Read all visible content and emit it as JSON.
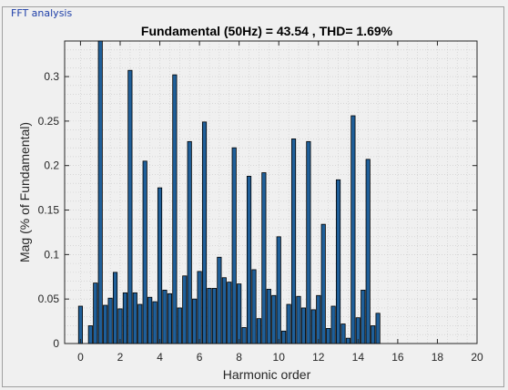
{
  "panel": {
    "title": "FFT analysis"
  },
  "chart_data": {
    "type": "bar",
    "title": "Fundamental (50Hz) = 43.54 , THD= 1.69%",
    "xlabel": "Harmonic order",
    "ylabel": "Mag (% of Fundamental)",
    "xlim": [
      -0.8,
      20
    ],
    "ylim": [
      0,
      0.34
    ],
    "xticks": [
      0,
      2,
      4,
      6,
      8,
      10,
      12,
      14,
      16,
      18,
      20
    ],
    "yticks": [
      0,
      0.05,
      0.1,
      0.15,
      0.2,
      0.25,
      0.3
    ],
    "ytick_labels": [
      "0",
      "0.05",
      "0.1",
      "0.15",
      "0.2",
      "0.25",
      "0.3"
    ],
    "grid": true,
    "bar_color": "#1f5f99",
    "x": [
      0,
      0.25,
      0.5,
      0.75,
      1,
      1.25,
      1.5,
      1.75,
      2,
      2.25,
      2.5,
      2.75,
      3,
      3.25,
      3.5,
      3.75,
      4,
      4.25,
      4.5,
      4.75,
      5,
      5.25,
      5.5,
      5.75,
      6,
      6.25,
      6.5,
      6.75,
      7,
      7.25,
      7.5,
      7.75,
      8,
      8.25,
      8.5,
      8.75,
      9,
      9.25,
      9.5,
      9.75,
      10,
      10.25,
      10.5,
      10.75,
      11,
      11.25,
      11.5,
      11.75,
      12,
      12.25,
      12.5,
      12.75,
      13,
      13.25,
      13.5,
      13.75,
      14,
      14.25,
      14.5,
      14.75,
      15,
      15.25,
      15.5,
      15.75,
      16,
      16.25,
      16.5,
      16.75,
      17,
      17.25,
      17.5,
      17.75,
      18,
      18.25,
      18.5,
      18.75,
      19,
      19.25,
      19.5
    ],
    "values": [
      0.042,
      0,
      0.02,
      0.068,
      0.34,
      0.043,
      0.051,
      0.08,
      0.039,
      0.057,
      0.307,
      0.057,
      0.044,
      0.205,
      0.052,
      0.047,
      0.175,
      0.06,
      0.056,
      0.302,
      0.04,
      0.076,
      0.227,
      0.05,
      0.081,
      0.249,
      0.062,
      0.062,
      0.097,
      0.074,
      0.069,
      0.22,
      0.067,
      0.018,
      0.188,
      0.083,
      0.028,
      0.192,
      0.061,
      0.054,
      0.12,
      0.014,
      0.044,
      0.23,
      0.053,
      0.04,
      0.227,
      0.038,
      0.054,
      0.134,
      0.017,
      0.042,
      0.184,
      0.022,
      0.006,
      0.256,
      0.029,
      0.06,
      0.207,
      0.02,
      0.034,
      0,
      0,
      0,
      0,
      0,
      0,
      0,
      0,
      0,
      0,
      0,
      0,
      0,
      0,
      0,
      0,
      0,
      0
    ]
  }
}
